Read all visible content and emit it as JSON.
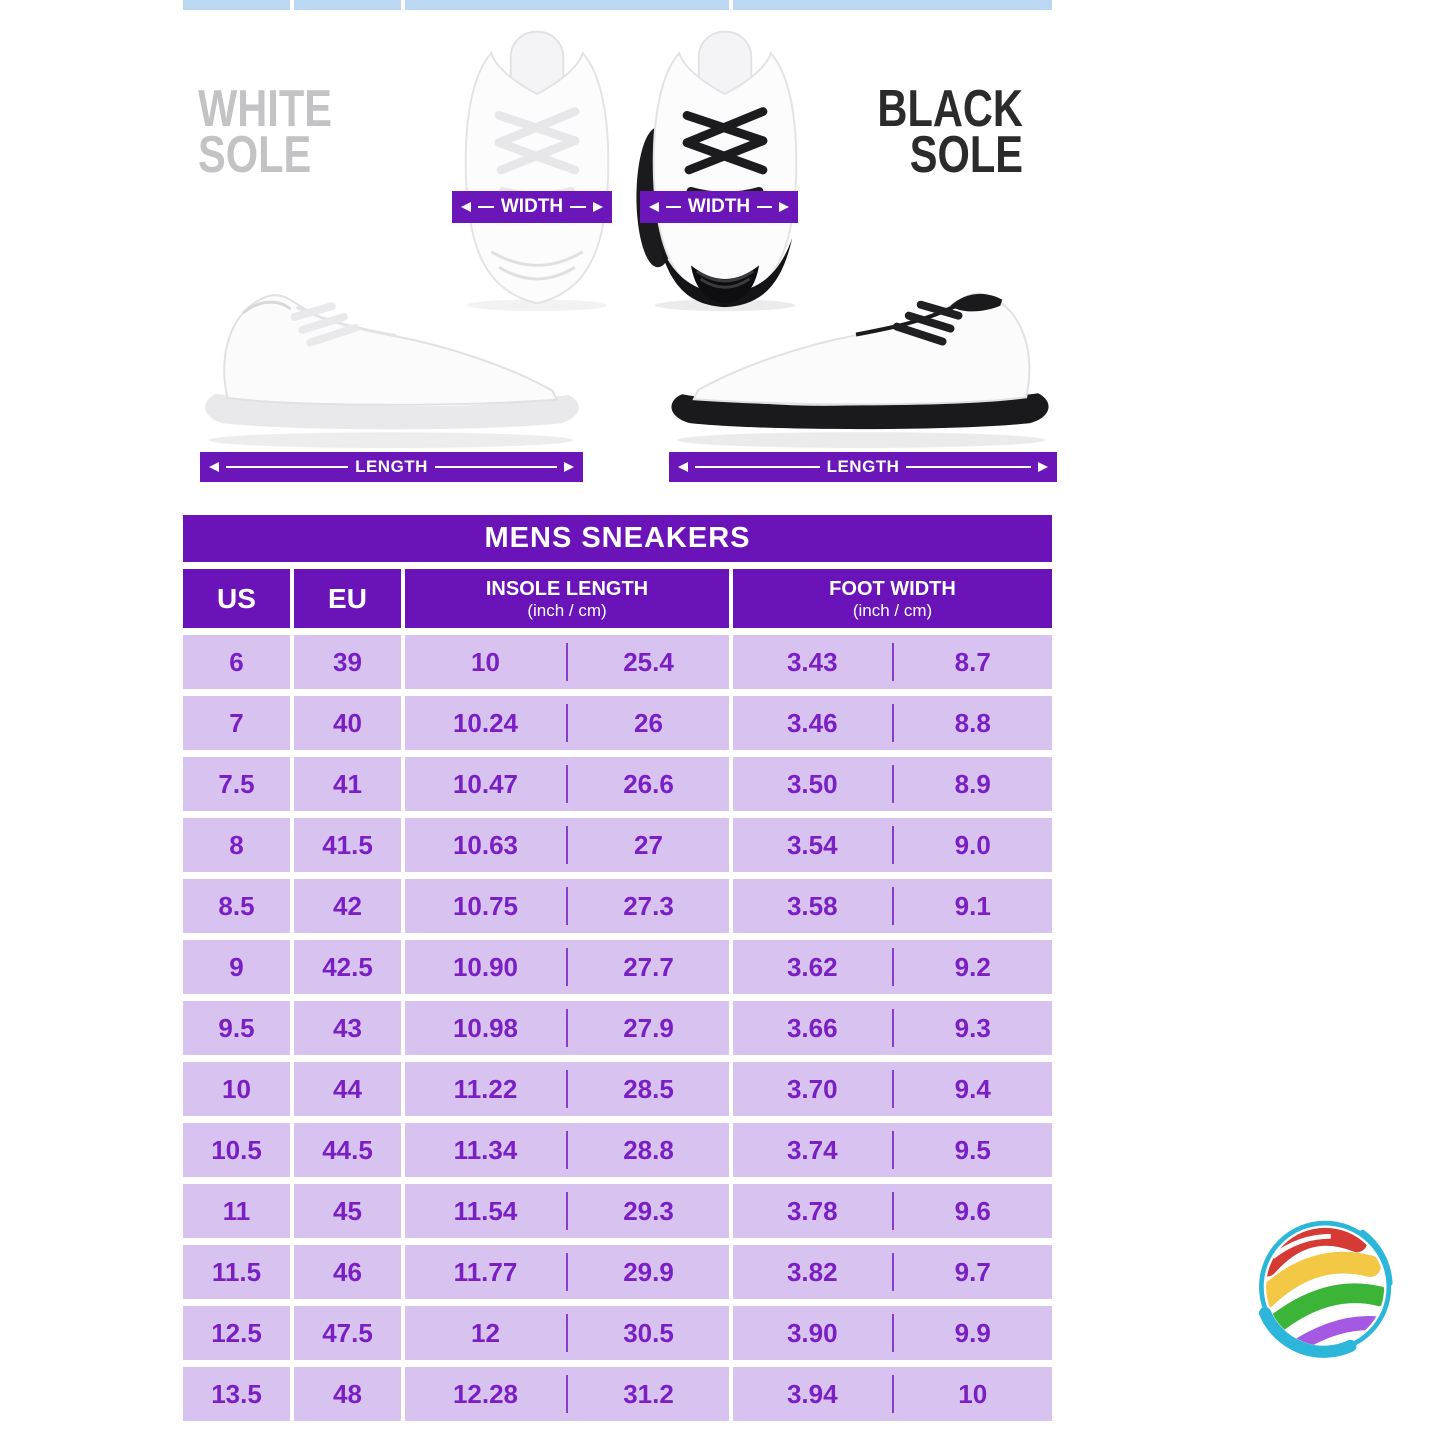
{
  "hero": {
    "white_label": [
      "WHITE",
      "SOLE"
    ],
    "black_label": [
      "BLACK",
      "SOLE"
    ],
    "width_label": "WIDTH",
    "length_label": "LENGTH"
  },
  "table": {
    "title": "MENS SNEAKERS",
    "headers": {
      "us": "US",
      "eu": "EU",
      "insole_title": "INSOLE LENGTH",
      "insole_unit": "(inch / cm)",
      "foot_title": "FOOT WIDTH",
      "foot_unit": "(inch / cm)"
    },
    "rows": [
      {
        "us": "6",
        "eu": "39",
        "insole_in": "10",
        "insole_cm": "25.4",
        "width_in": "3.43",
        "width_cm": "8.7"
      },
      {
        "us": "7",
        "eu": "40",
        "insole_in": "10.24",
        "insole_cm": "26",
        "width_in": "3.46",
        "width_cm": "8.8"
      },
      {
        "us": "7.5",
        "eu": "41",
        "insole_in": "10.47",
        "insole_cm": "26.6",
        "width_in": "3.50",
        "width_cm": "8.9"
      },
      {
        "us": "8",
        "eu": "41.5",
        "insole_in": "10.63",
        "insole_cm": "27",
        "width_in": "3.54",
        "width_cm": "9.0"
      },
      {
        "us": "8.5",
        "eu": "42",
        "insole_in": "10.75",
        "insole_cm": "27.3",
        "width_in": "3.58",
        "width_cm": "9.1"
      },
      {
        "us": "9",
        "eu": "42.5",
        "insole_in": "10.90",
        "insole_cm": "27.7",
        "width_in": "3.62",
        "width_cm": "9.2"
      },
      {
        "us": "9.5",
        "eu": "43",
        "insole_in": "10.98",
        "insole_cm": "27.9",
        "width_in": "3.66",
        "width_cm": "9.3"
      },
      {
        "us": "10",
        "eu": "44",
        "insole_in": "11.22",
        "insole_cm": "28.5",
        "width_in": "3.70",
        "width_cm": "9.4"
      },
      {
        "us": "10.5",
        "eu": "44.5",
        "insole_in": "11.34",
        "insole_cm": "28.8",
        "width_in": "3.74",
        "width_cm": "9.5"
      },
      {
        "us": "11",
        "eu": "45",
        "insole_in": "11.54",
        "insole_cm": "29.3",
        "width_in": "3.78",
        "width_cm": "9.6"
      },
      {
        "us": "11.5",
        "eu": "46",
        "insole_in": "11.77",
        "insole_cm": "29.9",
        "width_in": "3.82",
        "width_cm": "9.7"
      },
      {
        "us": "12.5",
        "eu": "47.5",
        "insole_in": "12",
        "insole_cm": "30.5",
        "width_in": "3.90",
        "width_cm": "9.9"
      },
      {
        "us": "13.5",
        "eu": "48",
        "insole_in": "12.28",
        "insole_cm": "31.2",
        "width_in": "3.94",
        "width_cm": "10"
      }
    ]
  },
  "colors": {
    "header_purple": "#6a13b8",
    "banner_purple": "#6a16b8",
    "cell_lavender": "#d8c2f0",
    "cell_text_purple": "#7a1fc4",
    "top_strip_blue": "#bad8f2",
    "white_sole_label_gray": "#c3c3c5",
    "black_sole_label_dark": "#2b2b2b",
    "logo_cyan": "#2cb7da",
    "logo_red": "#d63a34",
    "logo_yellow": "#f2c844",
    "logo_green": "#3cb437",
    "logo_purple": "#a559e3"
  }
}
